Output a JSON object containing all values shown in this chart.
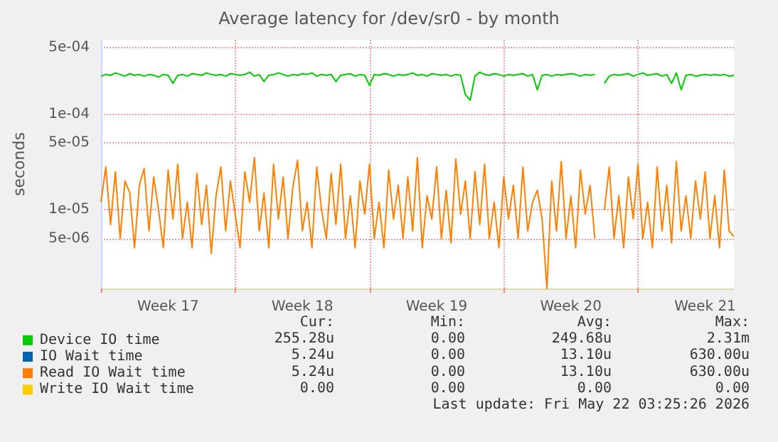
{
  "chart_data": {
    "type": "line",
    "title": "Average latency for /dev/sr0 - by month",
    "ylabel": "seconds",
    "log": "y",
    "grid": true,
    "legend": "bottom",
    "marker": "none",
    "line_style": "solid",
    "categories": [
      null,
      null,
      null,
      null,
      null,
      null,
      null,
      null,
      null,
      null,
      null,
      null,
      null,
      null,
      "Week 17",
      null,
      null,
      null,
      null,
      null,
      null,
      null,
      null,
      null,
      null,
      null,
      null,
      null,
      null,
      null,
      null,
      null,
      null,
      null,
      null,
      null,
      null,
      null,
      null,
      null,
      null,
      null,
      "Week 18",
      null,
      null,
      null,
      null,
      null,
      null,
      null,
      null,
      null,
      null,
      null,
      null,
      null,
      null,
      null,
      null,
      null,
      null,
      null,
      null,
      null,
      null,
      null,
      null,
      null,
      null,
      null,
      "Week 19",
      null,
      null,
      null,
      null,
      null,
      null,
      null,
      null,
      null,
      null,
      null,
      null,
      null,
      null,
      null,
      null,
      null,
      null,
      null,
      null,
      null,
      null,
      null,
      null,
      null,
      null,
      null,
      "Week 20",
      null,
      null,
      null,
      null,
      null,
      null,
      null,
      null,
      null,
      null,
      null,
      null,
      null,
      null,
      null,
      null,
      null,
      null,
      null,
      null,
      null,
      null,
      null,
      null,
      null,
      null,
      null,
      "Week 21",
      null,
      null,
      null,
      null,
      null,
      null
    ],
    "ylim": [
      1.5e-06,
      0.0006
    ],
    "yticks": [
      {
        "value": 5e-06,
        "label": "5e-06"
      },
      {
        "value": 1e-05,
        "label": "1e-05"
      },
      {
        "value": 5e-05,
        "label": "5e-05"
      },
      {
        "value": 0.0001,
        "label": "1e-04"
      },
      {
        "value": 0.0005,
        "label": "5e-04"
      }
    ],
    "series": [
      {
        "name": "Device IO time",
        "color": "#00cc00",
        "values": [
          0.00025,
          0.00026,
          0.000255,
          0.00027,
          0.00026,
          0.00025,
          0.000265,
          0.000255,
          0.00026,
          0.00025,
          0.00026,
          0.000255,
          0.000245,
          0.00026,
          0.000255,
          0.00021,
          0.000255,
          0.00026,
          0.00025,
          0.000265,
          0.00026,
          0.000255,
          0.00027,
          0.00026,
          0.000255,
          0.00026,
          0.00025,
          0.000265,
          0.00026,
          0.000255,
          0.00026,
          0.000275,
          0.00025,
          0.00026,
          0.00022,
          0.000255,
          0.00026,
          0.00027,
          0.00026,
          0.00025,
          0.00026,
          0.000255,
          0.000265,
          0.00026,
          0.00027,
          0.00025,
          0.00026,
          0.000255,
          0.00026,
          0.00022,
          0.000255,
          0.00026,
          0.000265,
          0.00025,
          0.00026,
          0.000255,
          0.0002,
          0.00026,
          0.000255,
          0.000265,
          0.00026,
          0.00025,
          0.00026,
          0.000255,
          0.00026,
          0.00027,
          0.000255,
          0.00026,
          0.00025,
          0.000265,
          0.00026,
          0.000255,
          0.00026,
          0.00025,
          0.00026,
          0.000255,
          0.00016,
          0.00014,
          0.00025,
          0.000275,
          0.00026,
          0.000255,
          0.000265,
          0.00026,
          0.00025,
          0.00026,
          0.000255,
          0.00026,
          0.000265,
          0.00025,
          0.00026,
          0.00018,
          0.000255,
          0.00026,
          0.00025,
          0.00026,
          0.000255,
          0.00026,
          0.000265,
          0.00026,
          0.00025,
          0.00026,
          0.000255,
          0.00026,
          null,
          0.00021,
          0.00025,
          0.00026,
          0.000255,
          0.00026,
          0.000265,
          0.00025,
          0.00026,
          0.00027,
          0.000255,
          0.00026,
          0.000265,
          0.00025,
          0.00026,
          0.00021,
          0.00027,
          0.00018,
          0.000255,
          0.00026,
          0.00025,
          0.000255,
          0.00026,
          0.000255,
          0.00026,
          0.000255,
          0.00026,
          0.00025,
          0.000255
        ]
      },
      {
        "name": "IO Wait time",
        "color": "#0066b3",
        "values": [
          null,
          null,
          null,
          null,
          null,
          null,
          null,
          null,
          null,
          null,
          null,
          null,
          null,
          null,
          null,
          null,
          null,
          null,
          null,
          null,
          null,
          null,
          null,
          null,
          null,
          null,
          null,
          null,
          null,
          null,
          null,
          null,
          null,
          null,
          null,
          null,
          null,
          null,
          null,
          null,
          null,
          null,
          null,
          null,
          null,
          null,
          null,
          null,
          null,
          null,
          null,
          null,
          null,
          null,
          null,
          null,
          null,
          null,
          null,
          null,
          null,
          null,
          null,
          null,
          null,
          null,
          null,
          null,
          null,
          null,
          null,
          null,
          null,
          null,
          null,
          null,
          null,
          null,
          null,
          null,
          null,
          null,
          null,
          null,
          null,
          null,
          null,
          null,
          null,
          null,
          null,
          null,
          null,
          null,
          null,
          null,
          null,
          null,
          null,
          null,
          null,
          null,
          null,
          null,
          null,
          null,
          null,
          null,
          null,
          null,
          null,
          null,
          null,
          null,
          null,
          null,
          null,
          null,
          null,
          null,
          null,
          null,
          null,
          null,
          null,
          null,
          null,
          null,
          null,
          null,
          null,
          null,
          null
        ]
      },
      {
        "name": "Read IO Wait time",
        "color": "#ff8000",
        "values": [
          1.2e-05,
          2.8e-05,
          7e-06,
          2.5e-05,
          5e-06,
          2e-05,
          1.5e-05,
          4e-06,
          1.8e-05,
          2.7e-05,
          6e-06,
          2.2e-05,
          1e-05,
          4e-06,
          2.6e-05,
          8e-06,
          3e-05,
          5e-06,
          1.2e-05,
          4e-06,
          2.4e-05,
          7e-06,
          1.8e-05,
          3.5e-06,
          1.4e-05,
          2.8e-05,
          6e-06,
          2e-05,
          9e-06,
          4e-06,
          2.5e-05,
          1.2e-05,
          3.5e-05,
          6e-06,
          1.5e-05,
          4e-06,
          3e-05,
          8e-06,
          2.2e-05,
          5e-06,
          1.7e-05,
          3.3e-05,
          6e-06,
          1.2e-05,
          4e-06,
          2.8e-05,
          1e-05,
          5e-06,
          2.4e-05,
          7e-06,
          3e-05,
          5e-06,
          1.4e-05,
          4e-06,
          2e-05,
          9e-06,
          3e-05,
          5e-06,
          1.2e-05,
          4e-06,
          2.6e-05,
          8e-06,
          1.8e-05,
          5e-06,
          2.2e-05,
          6e-06,
          3.5e-05,
          4e-06,
          1.4e-05,
          8e-06,
          2.8e-05,
          5e-06,
          1.6e-05,
          4.5e-06,
          3.4e-05,
          9e-06,
          2e-05,
          5e-06,
          2.5e-05,
          7e-06,
          3e-05,
          5e-06,
          1.2e-05,
          4e-06,
          2.2e-05,
          8e-06,
          1.8e-05,
          5e-06,
          2.8e-05,
          6e-06,
          1.2e-05,
          1.6e-05,
          8e-06,
          1.5e-06,
          2e-05,
          6e-06,
          3.2e-05,
          5e-06,
          1.4e-05,
          4e-06,
          2.6e-05,
          9e-06,
          1.8e-05,
          5e-06,
          null,
          1e-05,
          2.8e-05,
          5e-06,
          1.4e-05,
          4e-06,
          2.2e-05,
          8e-06,
          3e-05,
          5e-06,
          1.2e-05,
          4e-06,
          2.8e-05,
          6e-06,
          1.8e-05,
          4.5e-06,
          3.2e-05,
          6e-06,
          1.4e-05,
          5e-06,
          2e-05,
          8e-06,
          2.5e-05,
          5e-06,
          1.4e-05,
          4e-06,
          2.6e-05,
          6e-06,
          5.24e-06
        ]
      },
      {
        "name": "Write IO Wait time",
        "color": "#ffcc00",
        "values": [
          null,
          null,
          null,
          null,
          null,
          null,
          null,
          null,
          null,
          null,
          null,
          null,
          null,
          null,
          null,
          null,
          null,
          null,
          null,
          null,
          null,
          null,
          null,
          null,
          null,
          null,
          null,
          null,
          null,
          null,
          null,
          null,
          null,
          null,
          null,
          null,
          null,
          null,
          null,
          null,
          null,
          null,
          null,
          null,
          null,
          null,
          null,
          null,
          null,
          null,
          null,
          null,
          null,
          null,
          null,
          null,
          null,
          null,
          null,
          null,
          null,
          null,
          null,
          null,
          null,
          null,
          null,
          null,
          null,
          null,
          null,
          null,
          null,
          null,
          null,
          null,
          null,
          null,
          null,
          null,
          null,
          null,
          null,
          null,
          null,
          null,
          null,
          null,
          null,
          null,
          null,
          null,
          null,
          null,
          null,
          null,
          null,
          null,
          null,
          null,
          null,
          null,
          null,
          null,
          null,
          null,
          null,
          null,
          null,
          null,
          null,
          null,
          null,
          null,
          null,
          null,
          null,
          null,
          null,
          null,
          null,
          null,
          null,
          null,
          null,
          null,
          null,
          null,
          null,
          null,
          null,
          null,
          null
        ]
      }
    ],
    "annotations": [
      "Cur:",
      "Min:",
      "Avg:",
      "Max:",
      "255.28u",
      "0.00",
      "249.68u",
      "2.31m",
      "5.24u",
      "0.00",
      "13.10u",
      "630.00u",
      "5.24u",
      "0.00",
      "13.10u",
      "630.00u",
      "0.00",
      "0.00",
      "0.00",
      "0.00",
      "Last update: Fri May 22 03:25:26 2026"
    ]
  }
}
